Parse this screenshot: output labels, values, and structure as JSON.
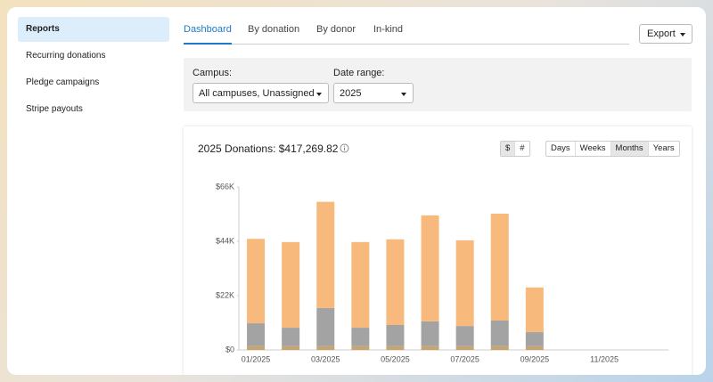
{
  "sidebar": {
    "items": [
      "Reports",
      "Recurring donations",
      "Pledge campaigns",
      "Stripe payouts"
    ],
    "active": 0
  },
  "tabs": {
    "items": [
      "Dashboard",
      "By donation",
      "By donor",
      "In-kind"
    ],
    "active": 0
  },
  "export": "Export",
  "filters": {
    "campus": {
      "label": "Campus:",
      "value": "All campuses, Unassigned"
    },
    "date_range": {
      "label": "Date range:",
      "value": "2025"
    }
  },
  "chart_data": {
    "type": "bar",
    "stacked": true,
    "title": "2025 Donations: $417,269.82",
    "unit_toggle": {
      "items": [
        "$",
        "#"
      ],
      "active": 0
    },
    "period_toggle": {
      "items": [
        "Days",
        "Weeks",
        "Months",
        "Years"
      ],
      "active": 2
    },
    "categories": [
      "01/2025",
      null,
      "03/2025",
      null,
      "05/2025",
      null,
      "07/2025",
      null,
      "09/2025",
      null,
      "11/2025",
      null
    ],
    "series": [
      {
        "color": "#c8a56e",
        "values": [
          1500,
          1500,
          1500,
          1500,
          1500,
          1500,
          1500,
          1500,
          1500,
          null,
          null,
          null
        ]
      },
      {
        "color": "#a3a3a3",
        "values": [
          9300,
          7500,
          15500,
          7500,
          8600,
          10100,
          8200,
          10400,
          5700,
          null,
          null,
          null
        ]
      },
      {
        "color": "#f8b97c",
        "values": [
          34200,
          34700,
          43000,
          34700,
          34700,
          42900,
          34700,
          43300,
          18100,
          null,
          null,
          null
        ]
      }
    ],
    "ylim": [
      0,
      66000
    ],
    "yticks": [
      {
        "value": 0,
        "label": "$0"
      },
      {
        "value": 22000,
        "label": "$22K"
      },
      {
        "value": 44000,
        "label": "$44K"
      },
      {
        "value": 66000,
        "label": "$66K"
      }
    ],
    "grid": false
  }
}
